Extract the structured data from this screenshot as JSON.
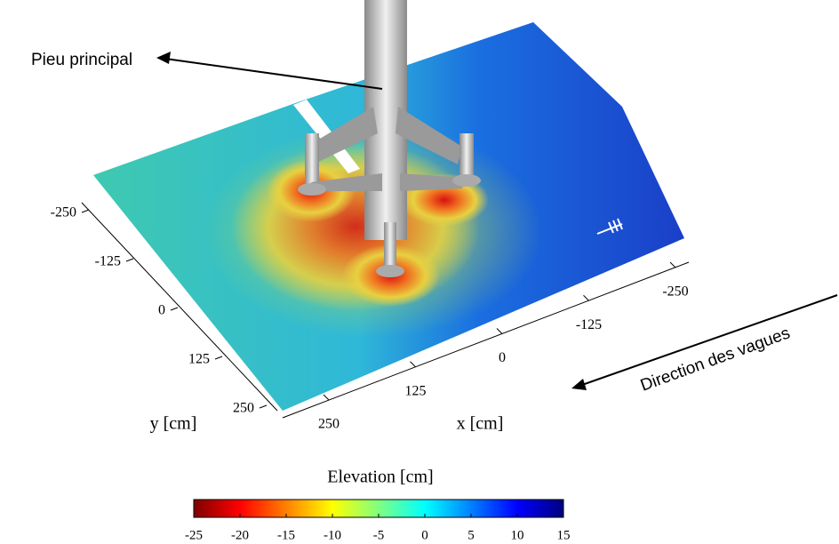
{
  "chart_data": {
    "type": "surface3d",
    "xlabel": "x [cm]",
    "ylabel": "y [cm]",
    "xlim": [
      250,
      -250
    ],
    "xticks": [
      250,
      125,
      0,
      -125,
      -250
    ],
    "ylim": [
      -250,
      250
    ],
    "yticks": [
      -250,
      -125,
      0,
      125,
      250
    ],
    "colorbar": {
      "label": "Elevation [cm]",
      "lim": [
        -25,
        15
      ],
      "ticks": [
        -25,
        -20,
        -15,
        -10,
        -5,
        0,
        5,
        10,
        15
      ],
      "colors": [
        "#7f0000",
        "#ff0000",
        "#ff8000",
        "#ffff00",
        "#80ff80",
        "#00ffff",
        "#0080ff",
        "#0000ff",
        "#00007f"
      ]
    },
    "annotations": [
      "Pieu principal",
      "Direction des vagues"
    ]
  }
}
